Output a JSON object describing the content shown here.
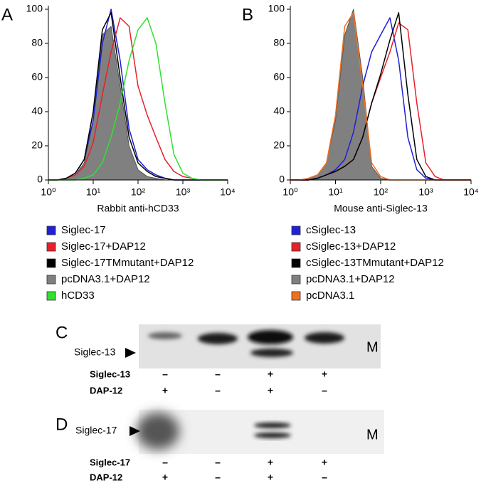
{
  "chart_data": [
    {
      "type": "line",
      "panel_label": "A",
      "xlabel": "Rabbit anti-hCD33",
      "xscale": "log",
      "xlim": [
        1,
        10000
      ],
      "ylim": [
        0,
        100
      ],
      "xticks": [
        {
          "value": 1,
          "label": "10⁰"
        },
        {
          "value": 10,
          "label": "10¹"
        },
        {
          "value": 100,
          "label": "10²"
        },
        {
          "value": 1000,
          "label": "10³"
        },
        {
          "value": 10000,
          "label": "10⁴"
        }
      ],
      "yticks": [
        0,
        20,
        40,
        60,
        80,
        100
      ],
      "x": [
        1,
        1.6,
        2.5,
        4,
        6.3,
        10,
        16,
        25,
        40,
        63,
        100,
        160,
        250,
        400,
        630,
        1000,
        1600,
        2500,
        4000,
        6300,
        10000
      ],
      "series": [
        {
          "name": "Siglec-17",
          "color": "#2020d8",
          "values": [
            0,
            0,
            1,
            4,
            12,
            35,
            80,
            100,
            70,
            30,
            12,
            6,
            3,
            1,
            0,
            0,
            0,
            0,
            0,
            0,
            0
          ]
        },
        {
          "name": "Siglec-17+DAP12",
          "color": "#e8202a",
          "values": [
            0,
            0,
            1,
            3,
            8,
            22,
            50,
            75,
            95,
            90,
            55,
            38,
            25,
            12,
            5,
            2,
            1,
            0,
            0,
            0,
            0
          ]
        },
        {
          "name": "Siglec-17TMmutant+DAP12",
          "color": "#000000",
          "values": [
            0,
            0,
            1,
            4,
            12,
            40,
            88,
            98,
            60,
            25,
            10,
            5,
            2,
            1,
            0,
            0,
            0,
            0,
            0,
            0,
            0
          ]
        },
        {
          "name": "pcDNA3.1+DAP12",
          "color": "#808080",
          "filled": true,
          "values": [
            0,
            0,
            1,
            3,
            10,
            35,
            85,
            90,
            55,
            20,
            6,
            2,
            1,
            0,
            0,
            0,
            0,
            0,
            0,
            0,
            0
          ]
        },
        {
          "name": "hCD33",
          "color": "#30e030",
          "values": [
            0,
            0,
            0,
            0,
            1,
            3,
            10,
            25,
            45,
            70,
            88,
            95,
            80,
            45,
            15,
            4,
            1,
            0,
            0,
            0,
            0
          ]
        }
      ]
    },
    {
      "type": "line",
      "panel_label": "B",
      "xlabel": "Mouse anti-Siglec-13",
      "xscale": "log",
      "xlim": [
        1,
        10000
      ],
      "ylim": [
        0,
        100
      ],
      "xticks": [
        {
          "value": 1,
          "label": "10⁰"
        },
        {
          "value": 10,
          "label": "10¹"
        },
        {
          "value": 100,
          "label": "10²"
        },
        {
          "value": 1000,
          "label": "10³"
        },
        {
          "value": 10000,
          "label": "10⁴"
        }
      ],
      "yticks": [
        0,
        20,
        40,
        60,
        80,
        100
      ],
      "x": [
        1,
        1.6,
        2.5,
        4,
        6.3,
        10,
        16,
        25,
        40,
        63,
        100,
        160,
        250,
        400,
        630,
        1000,
        1600,
        2500,
        4000,
        6300,
        10000
      ],
      "series": [
        {
          "name": "cSiglec-13",
          "color": "#2020d8",
          "values": [
            0,
            0,
            0,
            1,
            3,
            6,
            12,
            28,
            55,
            75,
            85,
            95,
            70,
            25,
            6,
            1,
            0,
            0,
            0,
            0,
            0
          ]
        },
        {
          "name": "cSiglec-13+DAP12",
          "color": "#e8202a",
          "values": [
            0,
            0,
            0,
            1,
            3,
            5,
            8,
            12,
            25,
            45,
            60,
            75,
            92,
            88,
            45,
            10,
            2,
            0,
            0,
            0,
            0
          ]
        },
        {
          "name": "cSiglec-13TMmutant+DAP12",
          "color": "#000000",
          "values": [
            0,
            0,
            0,
            1,
            3,
            5,
            8,
            12,
            25,
            45,
            62,
            82,
            98,
            50,
            12,
            2,
            0,
            0,
            0,
            0,
            0
          ]
        },
        {
          "name": "pcDNA3.1+DAP12",
          "color": "#808080",
          "filled": true,
          "values": [
            0,
            0,
            1,
            3,
            10,
            35,
            85,
            100,
            60,
            8,
            1,
            0,
            0,
            0,
            0,
            0,
            0,
            0,
            0,
            0,
            0
          ]
        },
        {
          "name": "pcDNA3.1",
          "color": "#f07020",
          "values": [
            0,
            0,
            1,
            3,
            10,
            38,
            90,
            98,
            55,
            10,
            2,
            0,
            0,
            0,
            0,
            0,
            0,
            0,
            0,
            0,
            0
          ]
        }
      ]
    }
  ],
  "blots": [
    {
      "label": "C",
      "band_label": "Siglec-13",
      "marker": "M",
      "rows": [
        {
          "name": "Siglec-13",
          "signs": [
            "–",
            "–",
            "+",
            "+"
          ]
        },
        {
          "name": "DAP-12",
          "signs": [
            "+",
            "–",
            "+",
            "–"
          ]
        }
      ]
    },
    {
      "label": "D",
      "band_label": "Siglec-17",
      "marker": "M",
      "rows": [
        {
          "name": "Siglec-17",
          "signs": [
            "–",
            "–",
            "+",
            "+"
          ]
        },
        {
          "name": "DAP-12",
          "signs": [
            "+",
            "–",
            "+",
            "–"
          ]
        }
      ]
    }
  ]
}
